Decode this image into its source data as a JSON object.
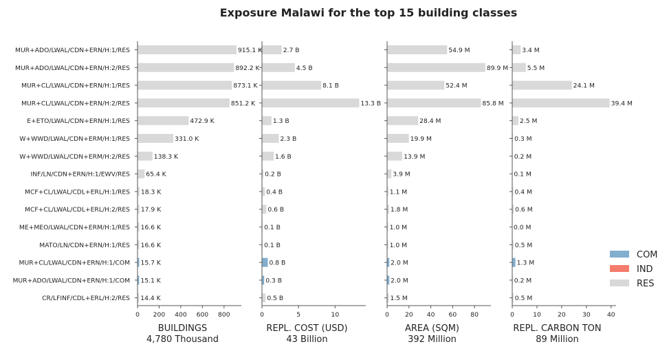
{
  "title": "Exposure Malawi for the top 15 building classes",
  "categories": [
    "MUR+ADO/LWAL/CDN+ERN/H:1/RES",
    "MUR+ADO/LWAL/CDN+ERN/H:2/RES",
    "MUR+CL/LWAL/CDN+ERN/H:1/RES",
    "MUR+CL/LWAL/CDN+ERN/H:2/RES",
    "E+ETO/LWAL/CDN+ERN/H:1/RES",
    "W+WWD/LWAL/CDN+ERM/H:1/RES",
    "W+WWD/LWAL/CDN+ERM/H:2/RES",
    "INF/LN/CDN+ERN/H:1/EWV/RES",
    "MCF+CL/LWAL/CDL+ERL/H:1/RES",
    "MCF+CL/LWAL/CDL+ERL/H:2/RES",
    "ME+MEO/LWAL/CDN+ERM/H:1/RES",
    "MATO/LN/CDN+ERN/H:1/RES",
    "MUR+CL/LWAL/CDN+ERN/H:1/COM",
    "MUR+ADO/LWAL/CDN+ERN/H:1/COM",
    "CR/LFINF/CDL+ERL/H:2/RES"
  ],
  "occupancy": [
    "RES",
    "RES",
    "RES",
    "RES",
    "RES",
    "RES",
    "RES",
    "RES",
    "RES",
    "RES",
    "RES",
    "RES",
    "COM",
    "COM",
    "RES"
  ],
  "colors": {
    "COM": "#82aecf",
    "IND": "#f47c6c",
    "RES": "#d9d9d9",
    "axis": "#555555",
    "text": "#222222"
  },
  "legend": {
    "items": [
      {
        "key": "COM",
        "label": "COM"
      },
      {
        "key": "IND",
        "label": "IND"
      },
      {
        "key": "RES",
        "label": "RES"
      }
    ]
  },
  "chart_data": [
    {
      "type": "bar",
      "xlabel": "BUILDINGS",
      "total": "4,780 Thousand",
      "xlim": [
        0,
        960
      ],
      "xticks": [
        0,
        200,
        400,
        600,
        800
      ],
      "values": [
        915.1,
        892.2,
        873.1,
        851.2,
        472.9,
        331.0,
        138.3,
        65.4,
        18.3,
        17.9,
        16.6,
        16.6,
        15.7,
        15.1,
        14.4
      ],
      "labels": [
        "915.1 K",
        "892.2 K",
        "873.1 K",
        "851.2 K",
        "472.9 K",
        "331.0 K",
        "138.3 K",
        "65.4 K",
        "18.3 K",
        "17.9 K",
        "16.6 K",
        "16.6 K",
        "15.7 K",
        "15.1 K",
        "14.4 K"
      ]
    },
    {
      "type": "bar",
      "xlabel": "REPL. COST (USD)",
      "total": "43 Billion",
      "xlim": [
        0,
        14.2
      ],
      "xticks": [
        0,
        5,
        10
      ],
      "values": [
        2.7,
        4.5,
        8.1,
        13.3,
        1.3,
        2.3,
        1.6,
        0.2,
        0.4,
        0.6,
        0.1,
        0.1,
        0.8,
        0.3,
        0.5
      ],
      "labels": [
        "2.7 B",
        "4.5 B",
        "8.1 B",
        "13.3 B",
        "1.3 B",
        "2.3 B",
        "1.6 B",
        "0.2 B",
        "0.4 B",
        "0.6 B",
        "0.1 B",
        "0.1 B",
        "0.8 B",
        "0.3 B",
        "0.5 B"
      ]
    },
    {
      "type": "bar",
      "xlabel": "AREA (SQM)",
      "total": "392 Million",
      "xlim": [
        0,
        95
      ],
      "xticks": [
        0,
        20,
        40,
        60,
        80
      ],
      "values": [
        54.9,
        89.9,
        52.4,
        85.8,
        28.4,
        19.9,
        13.9,
        3.9,
        1.1,
        1.8,
        1.0,
        1.0,
        2.0,
        2.0,
        1.5
      ],
      "labels": [
        "54.9 M",
        "89.9 M",
        "52.4 M",
        "85.8 M",
        "28.4 M",
        "19.9 M",
        "13.9 M",
        "3.9 M",
        "1.1 M",
        "1.8 M",
        "1.0 M",
        "1.0 M",
        "2.0 M",
        "2.0 M",
        "1.5 M"
      ]
    },
    {
      "type": "bar",
      "xlabel": "REPL. CARBON TON",
      "total": "89 Million",
      "xlim": [
        0,
        42
      ],
      "xticks": [
        0,
        10,
        20,
        30,
        40
      ],
      "values": [
        3.4,
        5.5,
        24.1,
        39.4,
        2.5,
        0.3,
        0.2,
        0.1,
        0.4,
        0.6,
        0.0,
        0.5,
        1.3,
        0.2,
        0.5
      ],
      "labels": [
        "3.4 M",
        "5.5 M",
        "24.1 M",
        "39.4 M",
        "2.5 M",
        "0.3 M",
        "0.2 M",
        "0.1 M",
        "0.4 M",
        "0.6 M",
        "0.0 M",
        "0.5 M",
        "1.3 M",
        "0.2 M",
        "0.5 M"
      ]
    }
  ]
}
